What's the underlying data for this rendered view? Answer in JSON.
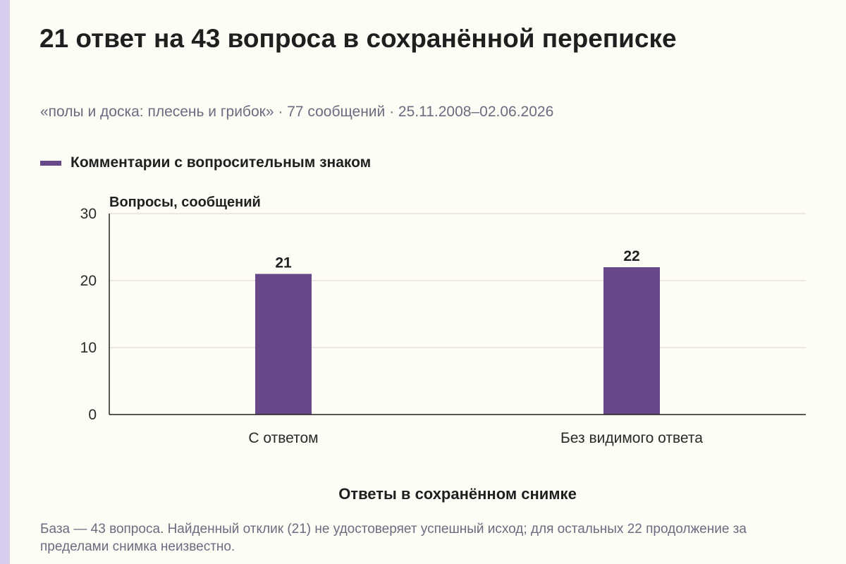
{
  "page": {
    "title": "21 ответ на 43 вопроса в сохранённой переписке",
    "subtitle": "«полы и доска: плесень и грибок» · 77 сообщений · 25.11.2008–02.06.2026",
    "note": "База — 43 вопроса. Найденный отклик (21) не удостоверяет успешный исход; для остальных 22 продолжение за пределами снимка неизвестно."
  },
  "colors": {
    "bar": "#674888",
    "accent": "#d9cdee",
    "grid": "#d6d3cc",
    "axis": "#222222"
  },
  "chart_data": {
    "type": "bar",
    "categories": [
      "С ответом",
      "Без видимого ответа"
    ],
    "series": [
      {
        "name": "Комментарии с вопросительным знаком",
        "values": [
          21,
          22
        ]
      }
    ],
    "data_labels": [
      "21",
      "22"
    ],
    "ylabel": "Вопросы, сообщений",
    "xlabel": "Ответы в сохранённом снимке",
    "ylim": [
      0,
      30
    ],
    "yticks": [
      0,
      10,
      20,
      30
    ],
    "grid": true,
    "legend": "top-left"
  }
}
